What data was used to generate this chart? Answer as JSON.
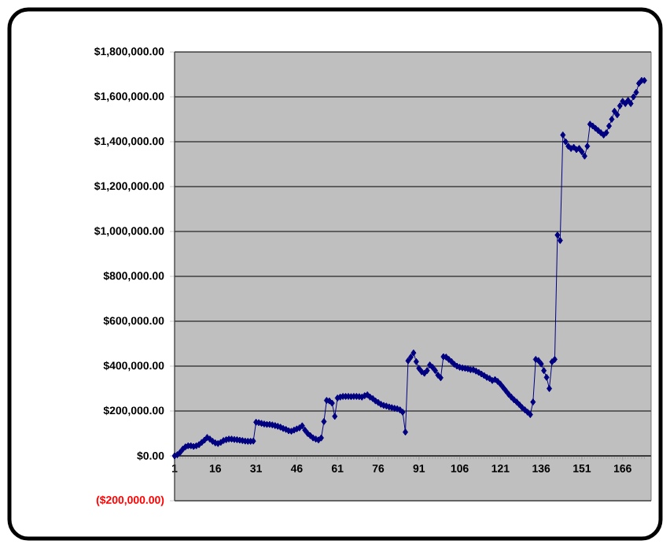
{
  "chart_data": {
    "type": "line",
    "color": "#000080",
    "marker": "diamond",
    "line_style": "solid",
    "grid": "y",
    "categories": [
      "1",
      null,
      null,
      null,
      null,
      null,
      null,
      null,
      null,
      null,
      null,
      null,
      null,
      null,
      null,
      "16",
      null,
      null,
      null,
      null,
      null,
      null,
      null,
      null,
      null,
      null,
      null,
      null,
      null,
      null,
      "31",
      null,
      null,
      null,
      null,
      null,
      null,
      null,
      null,
      null,
      null,
      null,
      null,
      null,
      null,
      "46",
      null,
      null,
      null,
      null,
      null,
      null,
      null,
      null,
      null,
      null,
      null,
      null,
      null,
      null,
      "61",
      null,
      null,
      null,
      null,
      null,
      null,
      null,
      null,
      null,
      null,
      null,
      null,
      null,
      null,
      "76",
      null,
      null,
      null,
      null,
      null,
      null,
      null,
      null,
      null,
      null,
      null,
      null,
      null,
      null,
      "91",
      null,
      null,
      null,
      null,
      null,
      null,
      null,
      null,
      null,
      null,
      null,
      null,
      null,
      null,
      "106",
      null,
      null,
      null,
      null,
      null,
      null,
      null,
      null,
      null,
      null,
      null,
      null,
      null,
      null,
      "121",
      null,
      null,
      null,
      null,
      null,
      null,
      null,
      null,
      null,
      null,
      null,
      null,
      null,
      null,
      "136",
      null,
      null,
      null,
      null,
      null,
      null,
      null,
      null,
      null,
      null,
      null,
      null,
      null,
      null,
      "151",
      null,
      null,
      null,
      null,
      null,
      null,
      null,
      null,
      null,
      null,
      null,
      null,
      null,
      null,
      "166",
      null,
      null,
      null,
      null,
      null,
      null,
      null,
      null
    ],
    "values": [
      0,
      5000,
      15000,
      30000,
      40000,
      45000,
      45000,
      42000,
      45000,
      50000,
      60000,
      70000,
      82000,
      75000,
      65000,
      58000,
      55000,
      60000,
      68000,
      72000,
      75000,
      75000,
      73000,
      72000,
      70000,
      68000,
      66000,
      65000,
      65000,
      66000,
      150000,
      148000,
      145000,
      142000,
      140000,
      140000,
      138000,
      135000,
      132000,
      128000,
      122000,
      118000,
      112000,
      110000,
      115000,
      120000,
      125000,
      134000,
      115000,
      100000,
      90000,
      80000,
      75000,
      71000,
      80000,
      153000,
      247000,
      245000,
      235000,
      176000,
      258000,
      262000,
      265000,
      265000,
      265000,
      264000,
      265000,
      265000,
      264000,
      262000,
      268000,
      272000,
      262000,
      255000,
      245000,
      238000,
      230000,
      225000,
      222000,
      218000,
      215000,
      212000,
      210000,
      205000,
      195000,
      106000,
      424000,
      440000,
      459000,
      420000,
      390000,
      375000,
      368000,
      380000,
      405000,
      395000,
      380000,
      360000,
      348000,
      442000,
      440000,
      430000,
      420000,
      408000,
      400000,
      395000,
      392000,
      390000,
      388000,
      384000,
      384000,
      378000,
      372000,
      365000,
      358000,
      350000,
      345000,
      336000,
      340000,
      332000,
      320000,
      305000,
      290000,
      275000,
      262000,
      250000,
      240000,
      228000,
      215000,
      205000,
      195000,
      184000,
      240000,
      430000,
      425000,
      410000,
      380000,
      350000,
      300000,
      419000,
      430000,
      984000,
      960000,
      1430000,
      1400000,
      1380000,
      1370000,
      1375000,
      1365000,
      1370000,
      1355000,
      1336000,
      1380000,
      1478000,
      1470000,
      1460000,
      1450000,
      1440000,
      1430000,
      1440000,
      1470000,
      1500000,
      1536000,
      1520000,
      1560000,
      1580000,
      1570000,
      1584000,
      1570000,
      1600000,
      1620000,
      1660000,
      1673000,
      1673000
    ],
    "ylim": [
      -200000,
      1800000
    ],
    "yticks": [
      {
        "value": -200000,
        "label": "($200,000.00)"
      },
      {
        "value": 0,
        "label": "$0.00"
      },
      {
        "value": 200000,
        "label": "$200,000.00"
      },
      {
        "value": 400000,
        "label": "$400,000.00"
      },
      {
        "value": 600000,
        "label": "$600,000.00"
      },
      {
        "value": 800000,
        "label": "$800,000.00"
      },
      {
        "value": 1000000,
        "label": "$1,000,000.00"
      },
      {
        "value": 1200000,
        "label": "$1,200,000.00"
      },
      {
        "value": 1400000,
        "label": "$1,400,000.00"
      },
      {
        "value": 1600000,
        "label": "$1,600,000.00"
      },
      {
        "value": 1800000,
        "label": "$1,800,000.00"
      }
    ]
  }
}
